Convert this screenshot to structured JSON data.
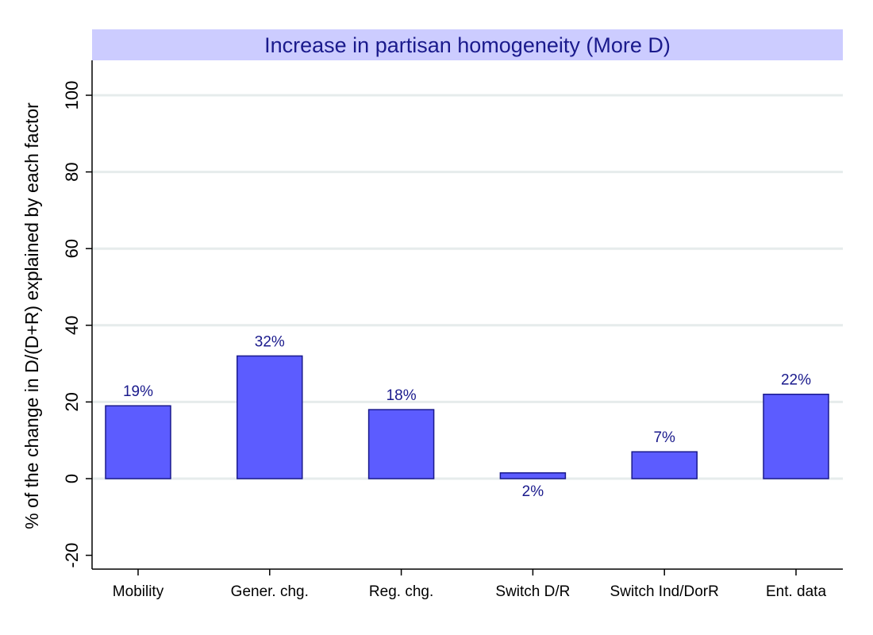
{
  "chart_data": {
    "type": "bar",
    "title": "Increase in partisan homogeneity (More D)",
    "ylabel": "% of the change in D/(D+R) explained by each factor",
    "xlabel": "",
    "categories": [
      "Mobility",
      "Gener. chg.",
      "Reg. chg.",
      "Switch D/R",
      "Switch Ind/DorR",
      "Ent. data"
    ],
    "values": [
      19,
      32,
      18,
      1.5,
      7,
      22
    ],
    "data_labels": [
      "19%",
      "32%",
      "18%",
      "2%",
      "7%",
      "22%"
    ],
    "yticks": [
      -20,
      0,
      20,
      40,
      60,
      80,
      100
    ],
    "ylim": [
      -24,
      108
    ],
    "grid": true,
    "legend": "none",
    "colors": {
      "bar_fill": "#5c5cff",
      "bar_stroke": "#1a1a8c",
      "label": "#1a1a8c",
      "title_band": "#ccccff",
      "title_text": "#1a1a8c"
    }
  }
}
